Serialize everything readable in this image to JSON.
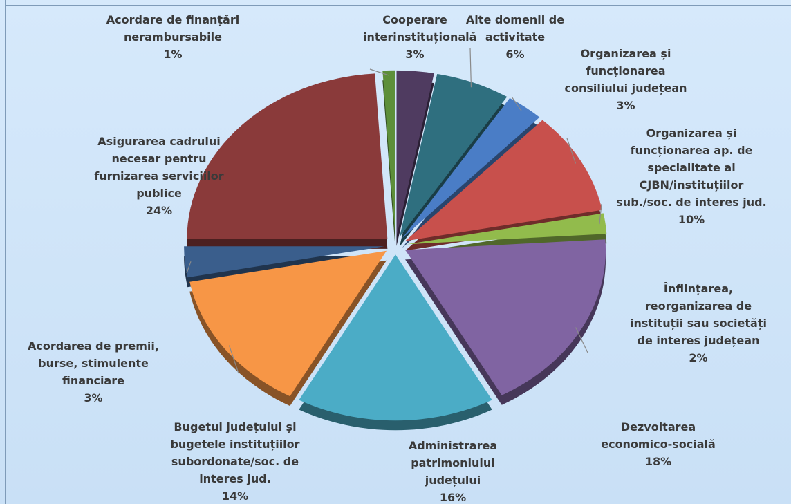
{
  "chart_data": {
    "type": "pie",
    "categories": [
      "Cooperare interinstituțională",
      "Alte domenii de activitate",
      "Organizarea și funcționarea consiliului județean",
      "Organizarea și funcționarea ap. de specialitate al CJBN/instituțiilor sub./soc. de interes jud.",
      "Înființarea, reorganizarea de instituții sau societăți de interes județean",
      "Dezvoltarea economico-socială",
      "Administrarea patrimoniului județului",
      "Bugetul județului și bugetele instituțiilor subordonate/soc. de interes jud.",
      "Acordarea de premii, burse, stimulente financiare",
      "Asigurarea cadrului necesar pentru furnizarea serviciilor publice",
      "Acordare de finanțări nerambursabile"
    ],
    "values": [
      3,
      6,
      3,
      10,
      2,
      18,
      16,
      14,
      3,
      24,
      1
    ],
    "value_labels": [
      "3%",
      "6%",
      "3%",
      "10%",
      "2%",
      "18%",
      "16%",
      "14%",
      "3%",
      "24%",
      "1%"
    ],
    "colors": [
      "#4f3b60",
      "#2f6f7f",
      "#4a7dc6",
      "#c8504c",
      "#92bb4c",
      "#8064a2",
      "#4bacc6",
      "#f79646",
      "#3a5e8c",
      "#8a3a3a",
      "#5d8f3a"
    ]
  }
}
